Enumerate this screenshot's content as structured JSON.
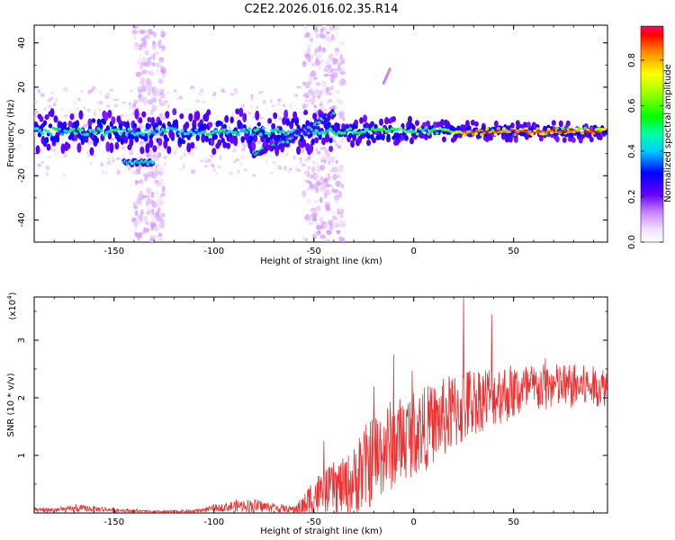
{
  "title": "C2E2.2026.016.02.35.R14",
  "chart_data": [
    {
      "type": "heatmap",
      "name": "spectrogram",
      "title": "C2E2.2026.016.02.35.R14",
      "xlabel": "Height of straight line (km)",
      "ylabel": "Frequency (Hz)",
      "xlim": [
        -190,
        97
      ],
      "ylim": [
        -50,
        48
      ],
      "xticks": [
        -150,
        -100,
        -50,
        0,
        50
      ],
      "yticks": [
        -40,
        -20,
        0,
        20,
        40
      ],
      "colorbar": {
        "label": "Normalized spectral amplitude",
        "range": [
          0.0,
          0.95
        ],
        "ticks": [
          0.0,
          0.2,
          0.4,
          0.6,
          0.8
        ]
      },
      "features": [
        {
          "name": "main doppler trace",
          "x_range": [
            -190,
            97
          ],
          "freq_hz_center": 0,
          "spread_hz": 4
        },
        {
          "name": "upward branch",
          "x": [
            -80,
            -75,
            -65,
            -55,
            -45,
            -40
          ],
          "freq_hz": [
            -10,
            -8,
            -5,
            0,
            6,
            8
          ]
        },
        {
          "name": "low branch",
          "x": [
            -145,
            -130
          ],
          "freq_hz": -14
        },
        {
          "name": "faint tail",
          "x": [
            -15,
            -12
          ],
          "freq_hz": [
            22,
            28
          ]
        },
        {
          "name": "broadband haze",
          "x_ranges": [
            [
              -140,
              -125
            ],
            [
              -55,
              -35
            ]
          ],
          "freq_hz_range": [
            -50,
            48
          ]
        }
      ]
    },
    {
      "type": "line",
      "name": "snr",
      "xlabel": "Height of straight line (km)",
      "ylabel": "SNR (10 * v/v)",
      "y_multiplier": "(x10",
      "y_multiplier_exp": "4",
      "y_multiplier_close": ")",
      "xlim": [
        -190,
        97
      ],
      "ylim": [
        0,
        3.75
      ],
      "xticks": [
        -150,
        -100,
        -50,
        0,
        50
      ],
      "yticks": [
        1,
        2,
        3
      ],
      "color": "#ee3030",
      "envelope": {
        "x": [
          -190,
          -175,
          -165,
          -150,
          -130,
          -110,
          -100,
          -90,
          -80,
          -70,
          -60,
          -55,
          -50,
          -45,
          -40,
          -35,
          -30,
          -25,
          -20,
          -15,
          -10,
          -5,
          0,
          5,
          10,
          15,
          20,
          25,
          30,
          40,
          50,
          60,
          70,
          80,
          90,
          97
        ],
        "mean": [
          0.04,
          0.06,
          0.08,
          0.05,
          0.02,
          0.03,
          0.08,
          0.12,
          0.13,
          0.09,
          0.06,
          0.12,
          0.3,
          0.35,
          0.45,
          0.45,
          0.55,
          0.75,
          0.95,
          1.1,
          1.2,
          1.3,
          1.4,
          1.45,
          1.55,
          1.65,
          1.75,
          1.85,
          1.95,
          2.05,
          2.1,
          2.15,
          2.2,
          2.2,
          2.2,
          2.2
        ],
        "spread": [
          0.04,
          0.05,
          0.06,
          0.04,
          0.02,
          0.03,
          0.05,
          0.1,
          0.12,
          0.08,
          0.06,
          0.2,
          0.4,
          0.35,
          0.45,
          0.5,
          0.6,
          0.75,
          0.8,
          0.8,
          0.8,
          0.75,
          0.75,
          0.75,
          0.7,
          0.7,
          0.7,
          0.7,
          0.6,
          0.55,
          0.5,
          0.45,
          0.4,
          0.4,
          0.35,
          0.35
        ]
      },
      "peaks": [
        {
          "x": 25,
          "y": 3.75
        },
        {
          "x": 39,
          "y": 3.45
        },
        {
          "x": -10,
          "y": 2.75
        },
        {
          "x": -20,
          "y": 2.2
        },
        {
          "x": -45,
          "y": 1.25
        }
      ]
    }
  ]
}
